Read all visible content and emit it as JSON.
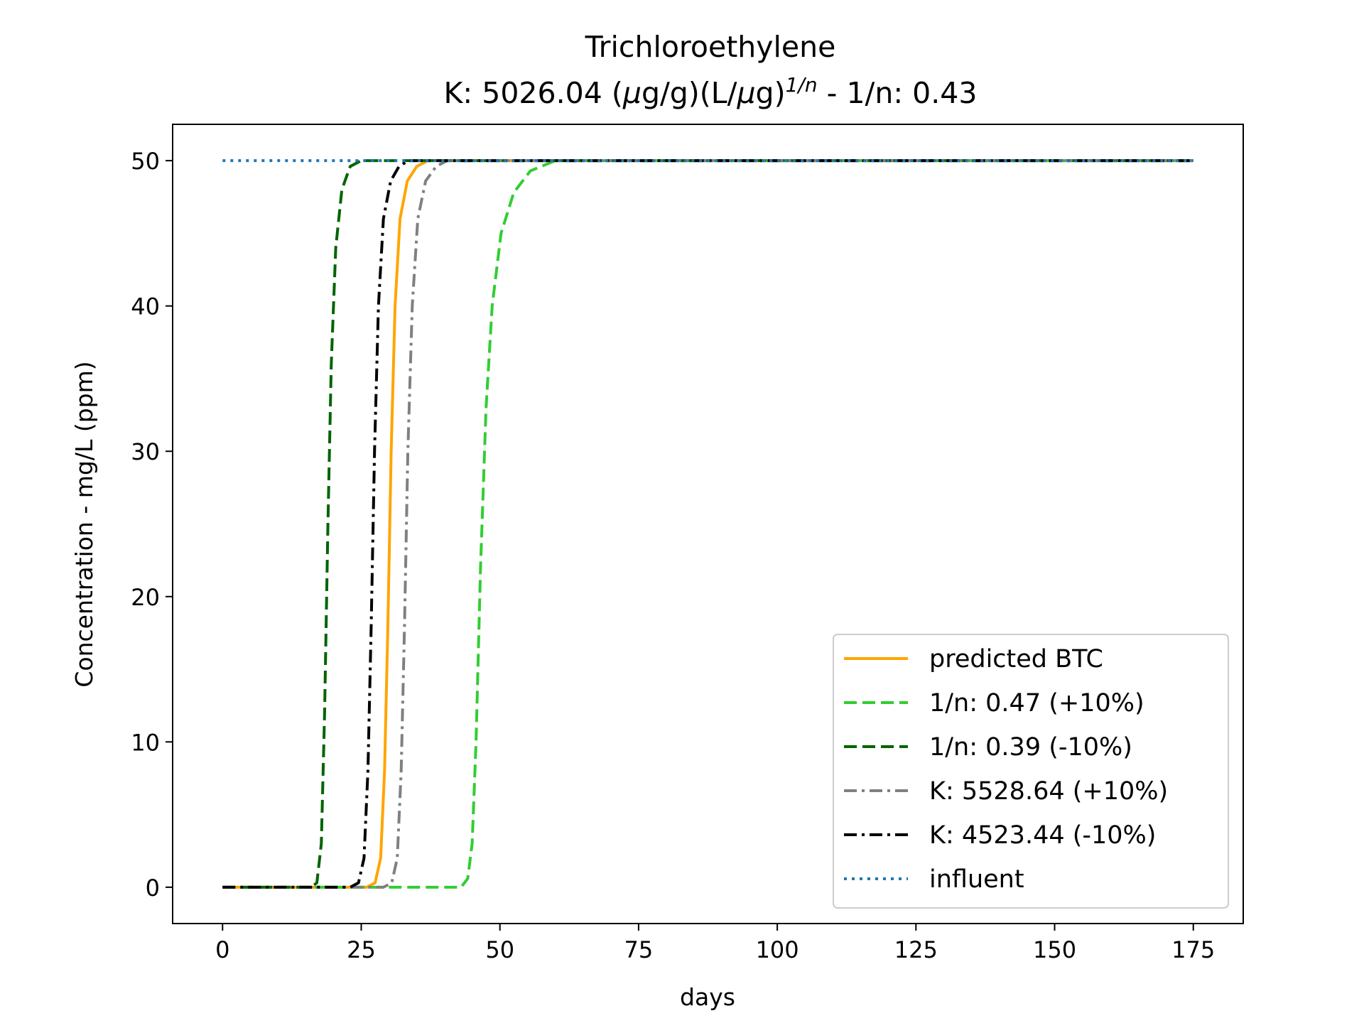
{
  "chart_data": {
    "type": "line",
    "title": "Trichloroethylene",
    "subtitle": {
      "prefix": "K: 5026.04 (",
      "mu1": "μ",
      "mid": "g/g)(L/",
      "mu2": "μ",
      "after_mu2": "g)",
      "superscript": "1/n",
      "suffix": " - 1/n: 0.43"
    },
    "xlabel": "days",
    "ylabel": "Concentration - mg/L (ppm)",
    "xlim": [
      -9,
      184
    ],
    "ylim": [
      -2.5,
      52.5
    ],
    "xticks": [
      0,
      25,
      50,
      75,
      100,
      125,
      150,
      175
    ],
    "yticks": [
      0,
      10,
      20,
      30,
      40,
      50
    ],
    "grid": false,
    "legend_position": "lower right",
    "series": [
      {
        "name": "predicted BTC",
        "color": "#ffa500",
        "style": "solid",
        "points": [
          [
            0,
            0
          ],
          [
            26,
            0
          ],
          [
            27.5,
            0.3
          ],
          [
            28.5,
            2
          ],
          [
            29.2,
            8
          ],
          [
            29.8,
            18
          ],
          [
            30.4,
            30
          ],
          [
            31.1,
            40
          ],
          [
            32,
            46
          ],
          [
            33.3,
            48.6
          ],
          [
            35,
            49.6
          ],
          [
            37,
            50
          ],
          [
            175,
            50
          ]
        ]
      },
      {
        "name": "1/n: 0.47 (+10%)",
        "color": "#32cd32",
        "style": "dashed",
        "points": [
          [
            0,
            0
          ],
          [
            40,
            0
          ],
          [
            43,
            0
          ],
          [
            44.2,
            0.6
          ],
          [
            45,
            3
          ],
          [
            45.7,
            10
          ],
          [
            46.5,
            22
          ],
          [
            47.5,
            33
          ],
          [
            48.6,
            40
          ],
          [
            50.2,
            45
          ],
          [
            52.5,
            47.8
          ],
          [
            55.5,
            49.3
          ],
          [
            60,
            50
          ],
          [
            175,
            50
          ]
        ]
      },
      {
        "name": "1/n: 0.39 (-10%)",
        "color": "#006400",
        "style": "dashed",
        "points": [
          [
            0,
            0
          ],
          [
            16,
            0
          ],
          [
            17,
            0.3
          ],
          [
            17.8,
            3
          ],
          [
            18.4,
            12
          ],
          [
            19,
            25
          ],
          [
            19.6,
            36
          ],
          [
            20.4,
            44
          ],
          [
            21.5,
            48
          ],
          [
            23,
            49.6
          ],
          [
            25,
            50
          ],
          [
            175,
            50
          ]
        ]
      },
      {
        "name": "K: 5528.64 (+10%)",
        "color": "#808080",
        "style": "dashdot",
        "points": [
          [
            0,
            0
          ],
          [
            29,
            0
          ],
          [
            30.5,
            0.3
          ],
          [
            31.5,
            2
          ],
          [
            32.2,
            8
          ],
          [
            32.8,
            18
          ],
          [
            33.4,
            30
          ],
          [
            34.2,
            40
          ],
          [
            35.2,
            46
          ],
          [
            36.6,
            48.6
          ],
          [
            38.5,
            49.6
          ],
          [
            40.5,
            50
          ],
          [
            175,
            50
          ]
        ]
      },
      {
        "name": "K: 4523.44 (-10%)",
        "color": "#000000",
        "style": "dashdot",
        "points": [
          [
            0,
            0
          ],
          [
            23,
            0
          ],
          [
            24.5,
            0.3
          ],
          [
            25.5,
            2
          ],
          [
            26.2,
            8
          ],
          [
            26.8,
            18
          ],
          [
            27.4,
            30
          ],
          [
            28.1,
            40
          ],
          [
            29,
            46
          ],
          [
            30.3,
            48.6
          ],
          [
            31.8,
            49.6
          ],
          [
            33.5,
            50
          ],
          [
            175,
            50
          ]
        ]
      },
      {
        "name": "influent",
        "color": "#1f77b4",
        "style": "dotted",
        "points": [
          [
            0,
            50
          ],
          [
            175,
            50
          ]
        ]
      }
    ]
  }
}
